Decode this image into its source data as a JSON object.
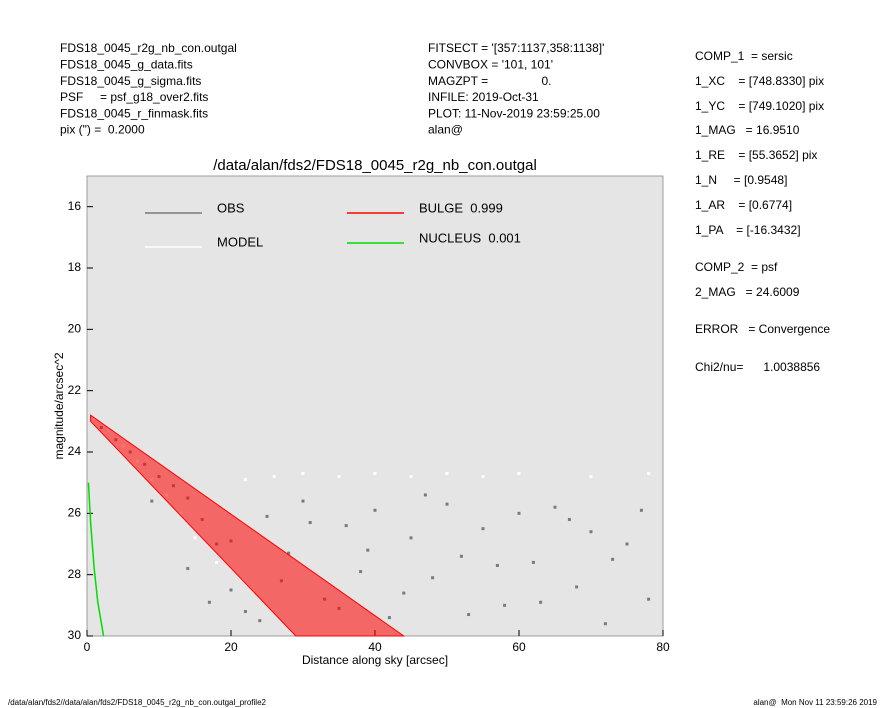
{
  "header": {
    "left": [
      "FDS18_0045_r2g_nb_con.outgal",
      "FDS18_0045_g_data.fits",
      "FDS18_0045_g_sigma.fits",
      "PSF     = psf_g18_over2.fits",
      "FDS18_0045_r_finmask.fits",
      "pix (\") =  0.2000"
    ],
    "center": [
      "FITSECT = '[357:1137,358:1138]'",
      "CONVBOX = '101, 101'",
      "MAGZPT =                0.",
      "INFILE: 2019-Oct-31",
      "PLOT: 11-Nov-2019 23:59:25.00",
      "alan@"
    ]
  },
  "params": [
    "COMP_1  = sersic",
    "1_XC    = [748.8330] pix",
    "1_YC    = [749.1020] pix",
    "1_MAG   = 16.9510",
    "1_RE    = [55.3652] pix",
    "1_N     = [0.9548]",
    "1_AR    = [0.6774]",
    "1_PA    = [-16.3432]",
    "COMP_2  = psf",
    "2_MAG   = 24.6009",
    "ERROR   = Convergence",
    "Chi2/nu=      1.0038856"
  ],
  "footer": {
    "left": "/data/alan/fds2//data/alan/fds2/FDS18_0045_r2g_nb_con.outgal_profile2",
    "right": "alan@  Mon Nov 11 23:59:26 2019"
  },
  "chart_data": {
    "type": "scatter",
    "title": "/data/alan/fds2/FDS18_0045_r2g_nb_con.outgal",
    "x_label": "Distance along sky [arcsec]",
    "y_label": "magnitude/arcsec^2",
    "xlim": [
      0,
      80
    ],
    "xticks": [
      0,
      20,
      40,
      60,
      80
    ],
    "ylim": [
      15,
      30
    ],
    "y_inverted": true,
    "yticks": [
      16,
      18,
      20,
      22,
      24,
      26,
      28,
      30
    ],
    "background": "#e5e5e5",
    "series": [
      {
        "name": "OBS",
        "color": "#7a7a7a",
        "kind": "points",
        "x": [
          2,
          4,
          6,
          8,
          10,
          12,
          14,
          16,
          18,
          20,
          22,
          25,
          28,
          30,
          33,
          36,
          38,
          40,
          42,
          45,
          48,
          50,
          52,
          55,
          58,
          60,
          62,
          65,
          68,
          70,
          72,
          75,
          78,
          14,
          17,
          20,
          24,
          27,
          31,
          35,
          39,
          44,
          47,
          53,
          57,
          63,
          67,
          73,
          77,
          9
        ],
        "values": [
          23.2,
          23.6,
          24.0,
          24.4,
          24.8,
          25.1,
          25.5,
          26.2,
          27.0,
          28.5,
          29.2,
          26.1,
          27.3,
          25.6,
          28.8,
          26.4,
          27.9,
          25.9,
          29.4,
          26.8,
          28.1,
          25.7,
          27.4,
          26.5,
          29.0,
          26.0,
          27.6,
          25.8,
          28.4,
          26.6,
          29.6,
          27.0,
          28.8,
          27.8,
          28.9,
          26.9,
          29.5,
          28.2,
          26.3,
          29.1,
          27.2,
          28.6,
          25.4,
          29.3,
          27.7,
          28.9,
          26.2,
          27.5,
          25.9,
          25.6
        ]
      },
      {
        "name": "MODEL",
        "color": "#ffffff",
        "kind": "points",
        "x": [
          1,
          3,
          5,
          7,
          9,
          11,
          13,
          15,
          18,
          22,
          26,
          30,
          35,
          40,
          45,
          50,
          55,
          60,
          70,
          78
        ],
        "values": [
          22.9,
          23.3,
          23.8,
          24.3,
          24.9,
          25.4,
          26.0,
          26.8,
          27.6,
          24.9,
          24.8,
          24.7,
          24.8,
          24.7,
          24.8,
          24.7,
          24.8,
          24.7,
          24.8,
          24.7
        ]
      },
      {
        "name": "BULGE  0.999",
        "color": "#ff0000",
        "kind": "band",
        "x": [
          0.5,
          44,
          29,
          0.5
        ],
        "values": [
          22.8,
          30,
          30,
          23.0
        ]
      },
      {
        "name": "NUCLEUS  0.001",
        "color": "#00dd00",
        "kind": "line",
        "x": [
          0.2,
          0.5,
          1,
          1.5,
          2.3
        ],
        "values": [
          25,
          26.3,
          27.8,
          28.9,
          30
        ]
      }
    ]
  }
}
